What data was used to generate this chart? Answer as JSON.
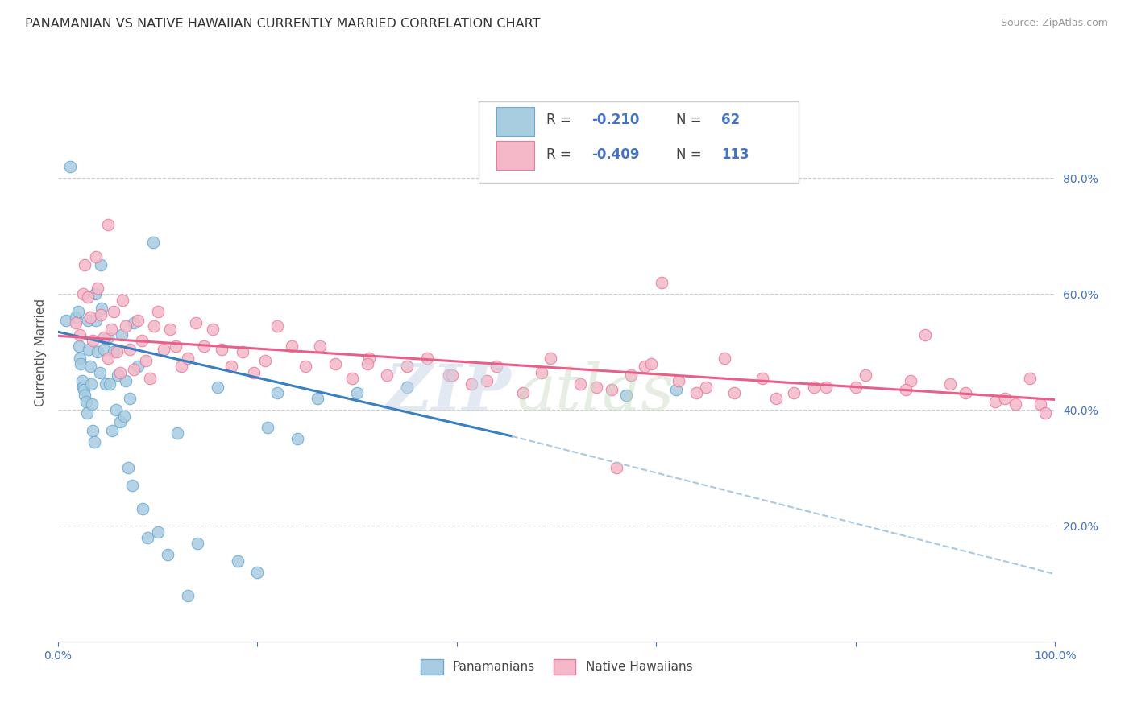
{
  "title": "PANAMANIAN VS NATIVE HAWAIIAN CURRENTLY MARRIED CORRELATION CHART",
  "source": "Source: ZipAtlas.com",
  "ylabel": "Currently Married",
  "legend_label1": "Panamanians",
  "legend_label2": "Native Hawaiians",
  "r1": "-0.210",
  "n1": "62",
  "r2": "-0.409",
  "n2": "113",
  "color_blue": "#a8cce0",
  "color_pink": "#f4b8c8",
  "color_blue_edge": "#6aaad4",
  "color_pink_edge": "#e87aa0",
  "color_line_blue": "#3a7fc1",
  "color_line_pink": "#e8608a",
  "color_dashed": "#aac8e0",
  "xlim": [
    0.0,
    1.0
  ],
  "ylim": [
    0.0,
    1.0
  ],
  "yticks": [
    0.2,
    0.4,
    0.6,
    0.8
  ],
  "ytick_labels": [
    "20.0%",
    "40.0%",
    "60.0%",
    "80.0%"
  ],
  "background": "#ffffff",
  "grid_color": "#cccccc",
  "pan_x": [
    0.008,
    0.012,
    0.018,
    0.02,
    0.021,
    0.022,
    0.023,
    0.024,
    0.025,
    0.026,
    0.027,
    0.028,
    0.029,
    0.03,
    0.031,
    0.032,
    0.033,
    0.034,
    0.035,
    0.036,
    0.037,
    0.038,
    0.04,
    0.042,
    0.043,
    0.044,
    0.046,
    0.048,
    0.05,
    0.052,
    0.054,
    0.056,
    0.058,
    0.06,
    0.062,
    0.064,
    0.066,
    0.068,
    0.07,
    0.072,
    0.074,
    0.076,
    0.08,
    0.085,
    0.09,
    0.095,
    0.1,
    0.11,
    0.12,
    0.13,
    0.14,
    0.16,
    0.18,
    0.2,
    0.21,
    0.22,
    0.24,
    0.26,
    0.3,
    0.35,
    0.57,
    0.62
  ],
  "pan_y": [
    0.555,
    0.82,
    0.56,
    0.57,
    0.51,
    0.49,
    0.48,
    0.45,
    0.44,
    0.435,
    0.425,
    0.415,
    0.395,
    0.555,
    0.505,
    0.475,
    0.445,
    0.41,
    0.365,
    0.345,
    0.6,
    0.555,
    0.5,
    0.465,
    0.65,
    0.575,
    0.505,
    0.445,
    0.525,
    0.445,
    0.365,
    0.5,
    0.4,
    0.46,
    0.38,
    0.53,
    0.39,
    0.45,
    0.3,
    0.42,
    0.27,
    0.55,
    0.475,
    0.23,
    0.18,
    0.69,
    0.19,
    0.15,
    0.36,
    0.08,
    0.17,
    0.44,
    0.14,
    0.12,
    0.37,
    0.43,
    0.35,
    0.42,
    0.43,
    0.44,
    0.425,
    0.435
  ],
  "haw_x": [
    0.018,
    0.022,
    0.025,
    0.027,
    0.03,
    0.032,
    0.035,
    0.038,
    0.04,
    0.043,
    0.046,
    0.05,
    0.053,
    0.056,
    0.059,
    0.062,
    0.065,
    0.068,
    0.072,
    0.076,
    0.08,
    0.084,
    0.088,
    0.092,
    0.096,
    0.1,
    0.106,
    0.112,
    0.118,
    0.124,
    0.13,
    0.138,
    0.146,
    0.155,
    0.164,
    0.174,
    0.185,
    0.196,
    0.208,
    0.22,
    0.234,
    0.248,
    0.263,
    0.278,
    0.295,
    0.312,
    0.33,
    0.35,
    0.37,
    0.392,
    0.415,
    0.44,
    0.466,
    0.494,
    0.524,
    0.555,
    0.588,
    0.605,
    0.622,
    0.65,
    0.678,
    0.706,
    0.738,
    0.77,
    0.81,
    0.855,
    0.895,
    0.94,
    0.96,
    0.975,
    0.985,
    0.99
  ],
  "haw_y": [
    0.55,
    0.53,
    0.6,
    0.65,
    0.595,
    0.56,
    0.52,
    0.665,
    0.61,
    0.565,
    0.525,
    0.49,
    0.54,
    0.57,
    0.5,
    0.465,
    0.59,
    0.545,
    0.505,
    0.47,
    0.555,
    0.52,
    0.485,
    0.455,
    0.545,
    0.57,
    0.505,
    0.54,
    0.51,
    0.475,
    0.49,
    0.55,
    0.51,
    0.54,
    0.505,
    0.475,
    0.5,
    0.465,
    0.485,
    0.545,
    0.51,
    0.475,
    0.51,
    0.48,
    0.455,
    0.49,
    0.46,
    0.475,
    0.49,
    0.46,
    0.445,
    0.475,
    0.43,
    0.49,
    0.445,
    0.435,
    0.475,
    0.62,
    0.45,
    0.44,
    0.43,
    0.455,
    0.43,
    0.44,
    0.46,
    0.45,
    0.445,
    0.415,
    0.41,
    0.455,
    0.41,
    0.395
  ],
  "haw_extra_x": [
    0.05,
    0.31,
    0.395,
    0.43,
    0.485,
    0.54,
    0.56,
    0.575,
    0.595,
    0.64,
    0.668,
    0.72,
    0.758,
    0.8,
    0.85,
    0.87,
    0.91,
    0.95
  ],
  "haw_extra_y": [
    0.72,
    0.48,
    0.46,
    0.45,
    0.465,
    0.44,
    0.3,
    0.46,
    0.48,
    0.43,
    0.49,
    0.42,
    0.44,
    0.44,
    0.435,
    0.53,
    0.43,
    0.42
  ],
  "trend_pan_x0": 0.0,
  "trend_pan_x1": 0.455,
  "trend_pan_y0": 0.535,
  "trend_pan_y1": 0.355,
  "trend_haw_x0": 0.0,
  "trend_haw_x1": 1.0,
  "trend_haw_y0": 0.528,
  "trend_haw_y1": 0.418,
  "trend_dash_x0": 0.455,
  "trend_dash_x1": 1.0,
  "trend_dash_y0": 0.355,
  "trend_dash_y1": 0.117
}
